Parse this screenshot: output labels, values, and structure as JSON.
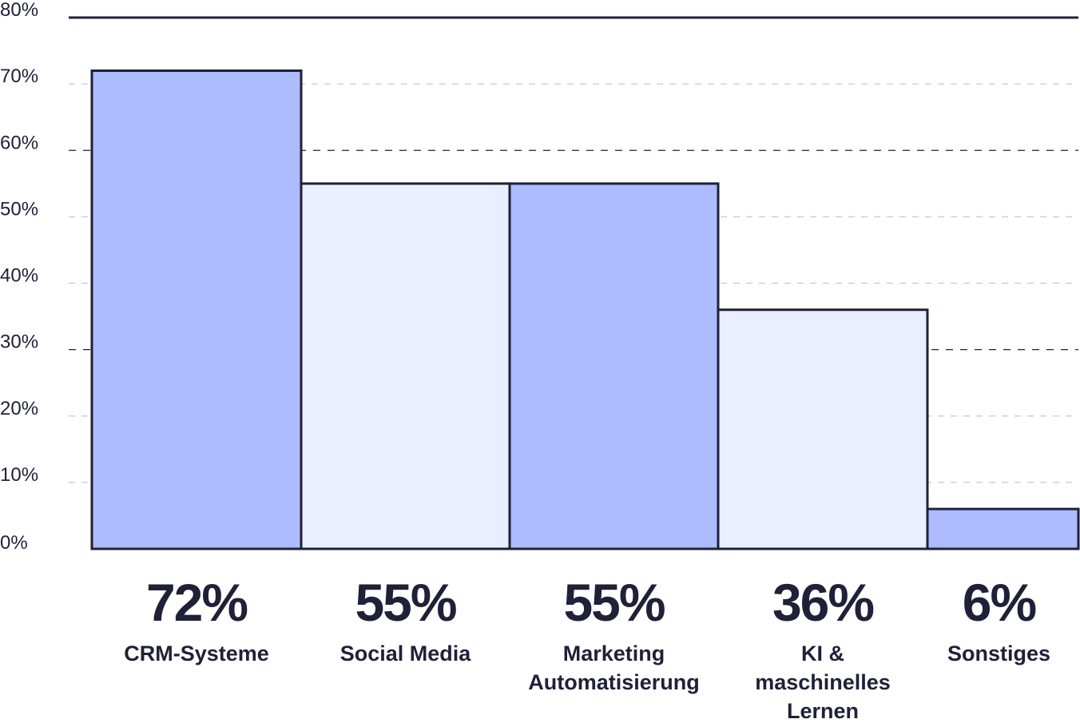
{
  "chart_data": {
    "type": "bar",
    "title": "",
    "xlabel": "",
    "ylabel": "",
    "ylim": [
      0,
      80
    ],
    "yticks": [
      "0%",
      "10%",
      "20%",
      "30%",
      "40%",
      "50%",
      "60%",
      "70%",
      "80%"
    ],
    "grid": true,
    "categories": [
      [
        "CRM-Systeme"
      ],
      [
        "Social Media"
      ],
      [
        "Marketing",
        "Automatisierung"
      ],
      [
        "KI &",
        "maschinelles",
        "Lernen"
      ],
      [
        "Sonstiges"
      ]
    ],
    "values": [
      72,
      55,
      55,
      36,
      6
    ],
    "value_labels": [
      "72%",
      "55%",
      "55%",
      "36%",
      "6%"
    ],
    "colors": {
      "bar_dark": "#adbcff",
      "bar_light": "#ebeefe",
      "stroke": "#1e2138",
      "grid_light": "#c8c8cc"
    }
  }
}
